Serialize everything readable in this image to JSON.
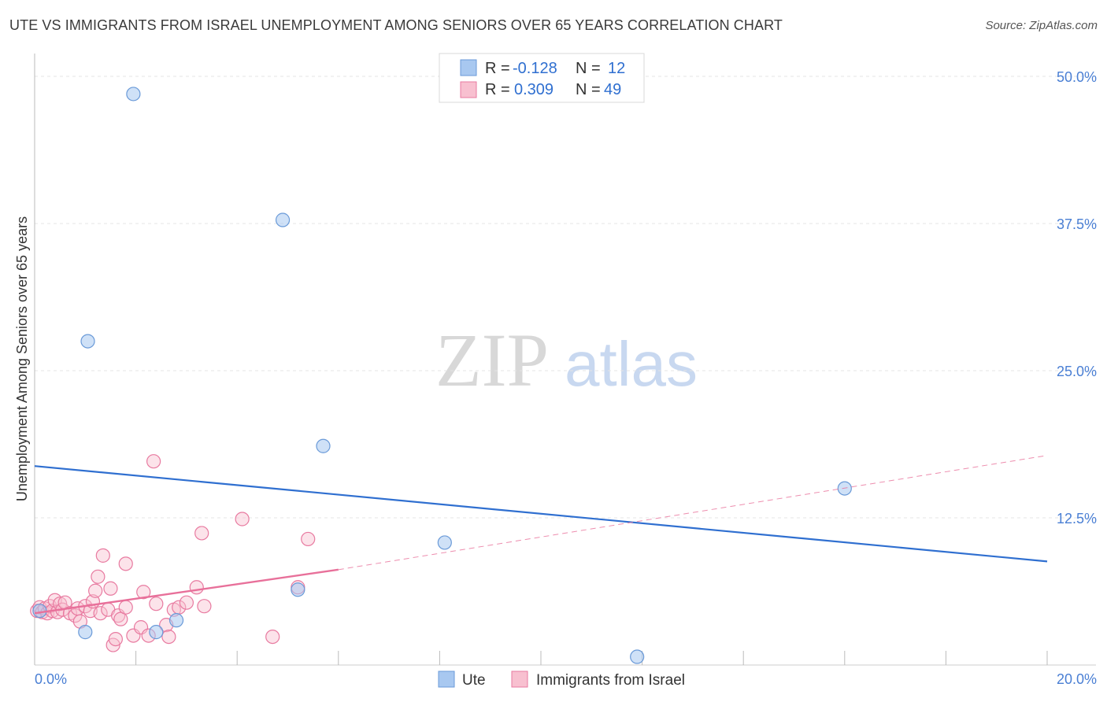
{
  "header": {
    "title": "UTE VS IMMIGRANTS FROM ISRAEL UNEMPLOYMENT AMONG SENIORS OVER 65 YEARS CORRELATION CHART",
    "source": "Source: ZipAtlas.com"
  },
  "watermark": {
    "zip": "ZIP",
    "atlas": "atlas"
  },
  "chart_data": {
    "type": "scatter",
    "title": "UTE VS IMMIGRANTS FROM ISRAEL UNEMPLOYMENT AMONG SENIORS OVER 65 YEARS CORRELATION CHART",
    "xlabel": "",
    "ylabel": "Unemployment Among Seniors over 65 years",
    "xlim": [
      0,
      20
    ],
    "ylim": [
      0,
      50
    ],
    "x_tick_labels": [
      "0.0%",
      "20.0%"
    ],
    "y_ticks": [
      12.5,
      25.0,
      37.5,
      50.0
    ],
    "y_tick_labels": [
      "12.5%",
      "25.0%",
      "37.5%",
      "50.0%"
    ],
    "legend_stats": [
      {
        "r_label": "R =",
        "r_value": "-0.128",
        "n_label": "N =",
        "n_value": "12"
      },
      {
        "r_label": "R =",
        "r_value": "0.309",
        "n_label": "N =",
        "n_value": "49"
      }
    ],
    "series": [
      {
        "name": "Ute",
        "color": "#a8c8f0",
        "stroke": "#6a9ad8",
        "trend_color": "#2f6fd0",
        "trend": {
          "x0": 0,
          "y0": 16.9,
          "x1": 20,
          "y1": 8.8
        },
        "points": [
          [
            0.1,
            4.6
          ],
          [
            1.0,
            2.8
          ],
          [
            1.05,
            27.5
          ],
          [
            1.95,
            48.5
          ],
          [
            2.4,
            2.8
          ],
          [
            2.8,
            3.8
          ],
          [
            4.9,
            37.8
          ],
          [
            5.2,
            6.4
          ],
          [
            5.7,
            18.6
          ],
          [
            8.1,
            10.4
          ],
          [
            11.9,
            0.7
          ],
          [
            16.0,
            15.0
          ]
        ]
      },
      {
        "name": "Immigrants from Israel",
        "color": "#f8c0d0",
        "stroke": "#e87aa0",
        "trend_color": "#e8709a",
        "trend": {
          "x0": 0,
          "y0": 4.4,
          "x1": 6.0,
          "y1": 8.1,
          "x_end": 20,
          "y_end": 17.8
        },
        "points": [
          [
            0.05,
            4.6
          ],
          [
            0.1,
            4.9
          ],
          [
            0.15,
            4.5
          ],
          [
            0.2,
            4.8
          ],
          [
            0.25,
            4.4
          ],
          [
            0.3,
            5.0
          ],
          [
            0.35,
            4.6
          ],
          [
            0.4,
            5.5
          ],
          [
            0.45,
            4.5
          ],
          [
            0.5,
            5.2
          ],
          [
            0.55,
            4.7
          ],
          [
            0.6,
            5.3
          ],
          [
            0.7,
            4.4
          ],
          [
            0.8,
            4.2
          ],
          [
            0.85,
            4.8
          ],
          [
            0.9,
            3.7
          ],
          [
            1.0,
            5.0
          ],
          [
            1.1,
            4.6
          ],
          [
            1.15,
            5.4
          ],
          [
            1.2,
            6.3
          ],
          [
            1.25,
            7.5
          ],
          [
            1.3,
            4.4
          ],
          [
            1.35,
            9.3
          ],
          [
            1.45,
            4.7
          ],
          [
            1.5,
            6.5
          ],
          [
            1.55,
            1.7
          ],
          [
            1.6,
            2.2
          ],
          [
            1.65,
            4.2
          ],
          [
            1.7,
            3.9
          ],
          [
            1.8,
            4.9
          ],
          [
            1.8,
            8.6
          ],
          [
            1.95,
            2.5
          ],
          [
            2.1,
            3.2
          ],
          [
            2.15,
            6.2
          ],
          [
            2.25,
            2.5
          ],
          [
            2.35,
            17.3
          ],
          [
            2.4,
            5.2
          ],
          [
            2.6,
            3.4
          ],
          [
            2.65,
            2.4
          ],
          [
            2.75,
            4.7
          ],
          [
            2.85,
            4.9
          ],
          [
            3.0,
            5.3
          ],
          [
            3.2,
            6.6
          ],
          [
            3.3,
            11.2
          ],
          [
            3.35,
            5.0
          ],
          [
            4.1,
            12.4
          ],
          [
            4.7,
            2.4
          ],
          [
            5.2,
            6.6
          ],
          [
            5.4,
            10.7
          ]
        ]
      }
    ]
  }
}
